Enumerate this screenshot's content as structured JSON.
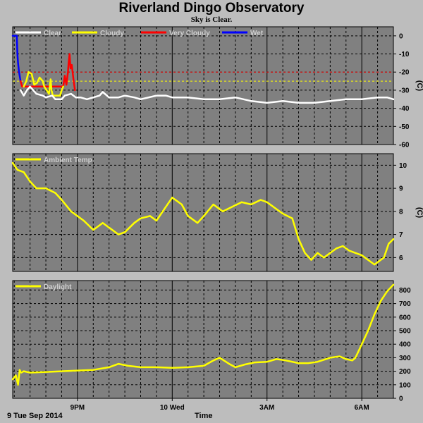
{
  "header": {
    "title": "Riverland Dingo Observatory",
    "subtitle": "Sky is Clear."
  },
  "footer": {
    "date_label": "9 Tue Sep 2014",
    "axis_label": "Time"
  },
  "colors": {
    "background": "#bdbdbd",
    "plot_bg": "#808080",
    "grid": "#000000",
    "clear": "#ffffff",
    "cloudy": "#ffff00",
    "very_cloudy": "#ff0000",
    "wet": "#0000ff"
  },
  "chart_data": [
    {
      "type": "line",
      "name": "sky",
      "ylabel": "(C)",
      "ylim": [
        -60,
        5
      ],
      "yticks": [
        0,
        -10,
        -20,
        -30,
        -40,
        -50,
        -60
      ],
      "thresholds": [
        {
          "value": -20,
          "color": "#ff0000"
        },
        {
          "value": -25,
          "color": "#ffff00"
        }
      ],
      "legend": [
        "Clear",
        "Cloudy",
        "Very Cloudy",
        "Wet"
      ],
      "series": [
        {
          "name": "Wet",
          "color": "#0000ff",
          "x": [
            18.95,
            19.08,
            19.1,
            19.12,
            19.15,
            19.2
          ],
          "y": [
            0,
            0,
            -10,
            -15,
            -20,
            -25
          ]
        },
        {
          "name": "Very Cloudy",
          "color": "#ff0000",
          "x": [
            19.2,
            19.25,
            20.55,
            20.6,
            20.65,
            20.7,
            20.72,
            20.75,
            20.78,
            20.82,
            20.88,
            20.92
          ],
          "y": [
            -25,
            -28,
            -28,
            -22,
            -27,
            -20,
            -15,
            -10,
            -18,
            -16,
            -25,
            -30
          ]
        },
        {
          "name": "Cloudy",
          "color": "#ffff00",
          "x": [
            19.3,
            19.38,
            19.45,
            19.55,
            19.63,
            19.72,
            19.8,
            19.9,
            19.95,
            20.1,
            20.15,
            20.18,
            20.22,
            20.45,
            20.5,
            20.55
          ],
          "y": [
            -28,
            -25,
            -20,
            -21,
            -27,
            -26,
            -23,
            -25,
            -28,
            -32,
            -24,
            -30,
            -33,
            -33,
            -30,
            -28
          ]
        },
        {
          "name": "Clear",
          "color": "#ffffff",
          "x": [
            19.2,
            19.3,
            19.4,
            19.5,
            19.7,
            19.9,
            20.0,
            20.2,
            20.3,
            20.5,
            20.6,
            20.8,
            20.95,
            21.1,
            21.3,
            21.5,
            21.7,
            21.8,
            22.0,
            22.3,
            22.5,
            22.8,
            23.0,
            23.5,
            23.8,
            24.0,
            24.3,
            24.5,
            25.0,
            25.5,
            26.0,
            26.5,
            27.0,
            27.5,
            28.0,
            28.5,
            29.0,
            29.5,
            30.0,
            30.5,
            30.8,
            31.0
          ],
          "y": [
            -30,
            -33,
            -30,
            -28,
            -32,
            -33,
            -34,
            -33,
            -35,
            -35,
            -33,
            -32,
            -34,
            -34,
            -35,
            -34,
            -33,
            -31,
            -34,
            -34,
            -33,
            -34,
            -35,
            -33,
            -33,
            -34,
            -34,
            -34,
            -35,
            -35,
            -34,
            -36,
            -37,
            -36,
            -37,
            -37,
            -36,
            -35,
            -35,
            -34,
            -34,
            -35
          ]
        }
      ]
    },
    {
      "type": "line",
      "name": "ambient",
      "ylabel": "(C)",
      "ylim": [
        5.4,
        10.5
      ],
      "yticks": [
        6,
        7,
        8,
        9,
        10
      ],
      "legend": [
        "Ambient Temp"
      ],
      "series": [
        {
          "name": "Ambient Temp",
          "color": "#ffff00",
          "x": [
            18.95,
            19.0,
            19.1,
            19.3,
            19.5,
            19.7,
            20.0,
            20.3,
            20.5,
            20.8,
            21.2,
            21.5,
            21.8,
            22.0,
            22.3,
            22.5,
            22.8,
            23.0,
            23.3,
            23.5,
            23.8,
            24.0,
            24.3,
            24.5,
            24.8,
            25.0,
            25.3,
            25.6,
            25.9,
            26.2,
            26.5,
            26.8,
            27.0,
            27.3,
            27.5,
            27.8,
            28.0,
            28.2,
            28.4,
            28.6,
            28.8,
            29.0,
            29.2,
            29.4,
            29.6,
            29.8,
            30.0,
            30.2,
            30.4,
            30.6,
            30.7,
            30.85,
            31.0
          ],
          "y": [
            10.1,
            10.0,
            9.8,
            9.7,
            9.3,
            9.0,
            9.0,
            8.8,
            8.5,
            8.0,
            7.6,
            7.2,
            7.5,
            7.3,
            7.0,
            7.1,
            7.5,
            7.7,
            7.8,
            7.6,
            8.2,
            8.6,
            8.3,
            7.8,
            7.5,
            7.8,
            8.3,
            8.0,
            8.2,
            8.4,
            8.3,
            8.5,
            8.4,
            8.1,
            7.9,
            7.7,
            6.8,
            6.2,
            5.9,
            6.2,
            6.0,
            6.2,
            6.4,
            6.5,
            6.3,
            6.2,
            6.1,
            5.9,
            5.7,
            5.9,
            6.0,
            6.6,
            6.8
          ]
        }
      ]
    },
    {
      "type": "line",
      "name": "daylight",
      "ylim": [
        0,
        870
      ],
      "yticks": [
        0,
        100,
        200,
        300,
        400,
        500,
        600,
        700,
        800
      ],
      "legend": [
        "Daylight"
      ],
      "x_ticks": [
        {
          "value": 21,
          "label": "9PM"
        },
        {
          "value": 24,
          "label": "10 Wed"
        },
        {
          "value": 27,
          "label": "3AM"
        },
        {
          "value": 30,
          "label": "6AM"
        }
      ],
      "xlim": [
        18.95,
        31.0
      ],
      "series": [
        {
          "name": "Daylight",
          "color": "#ffff00",
          "x": [
            18.95,
            19.05,
            19.12,
            19.17,
            19.22,
            19.3,
            19.5,
            20.0,
            20.5,
            21.0,
            21.5,
            22.0,
            22.3,
            22.6,
            23.0,
            23.5,
            24.0,
            24.5,
            25.0,
            25.3,
            25.5,
            25.8,
            26.0,
            26.3,
            26.6,
            27.0,
            27.3,
            27.6,
            28.0,
            28.3,
            28.6,
            29.0,
            29.3,
            29.5,
            29.7,
            29.8,
            30.0,
            30.2,
            30.4,
            30.6,
            30.8,
            31.0
          ],
          "y": [
            140,
            170,
            100,
            210,
            190,
            200,
            190,
            195,
            200,
            205,
            210,
            230,
            255,
            240,
            230,
            230,
            225,
            230,
            240,
            280,
            300,
            255,
            230,
            250,
            265,
            270,
            290,
            280,
            260,
            260,
            270,
            300,
            310,
            290,
            280,
            300,
            400,
            500,
            620,
            720,
            790,
            840
          ]
        }
      ]
    }
  ]
}
